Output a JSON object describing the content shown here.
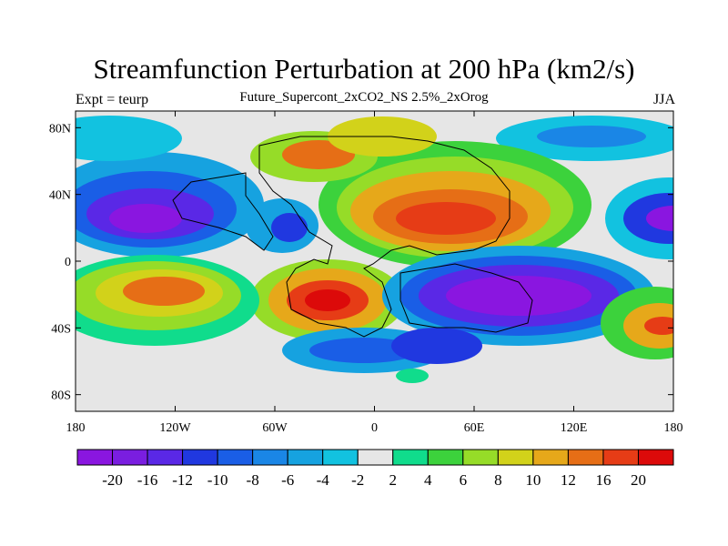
{
  "title": "Streamfunction Perturbation at 200 hPa (km2/s)",
  "subtitle": "Future_Supercont_2xCO2_NS 2.5%_2xOrog",
  "left_label": "Expt = teurp",
  "right_label": "JJA",
  "x_ticks": [
    "180",
    "120W",
    "60W",
    "0",
    "60E",
    "120E",
    "180"
  ],
  "y_ticks": [
    "80N",
    "40N",
    "0",
    "40S",
    "80S"
  ],
  "colorbar": {
    "colors": [
      "#8a16e0",
      "#7a1ee0",
      "#5a28e6",
      "#2038e0",
      "#1a5ee6",
      "#1a86e6",
      "#16a2e0",
      "#12c2e0",
      "#e6e6e6",
      "#10dc8c",
      "#3cd23c",
      "#96dc28",
      "#d2d21a",
      "#e6a81a",
      "#e66e16",
      "#e63c16",
      "#dc0a0a"
    ],
    "labels": [
      "-20",
      "-16",
      "-12",
      "-10",
      "-8",
      "-6",
      "-4",
      "-2",
      "2",
      "4",
      "6",
      "8",
      "10",
      "12",
      "16",
      "20"
    ]
  }
}
